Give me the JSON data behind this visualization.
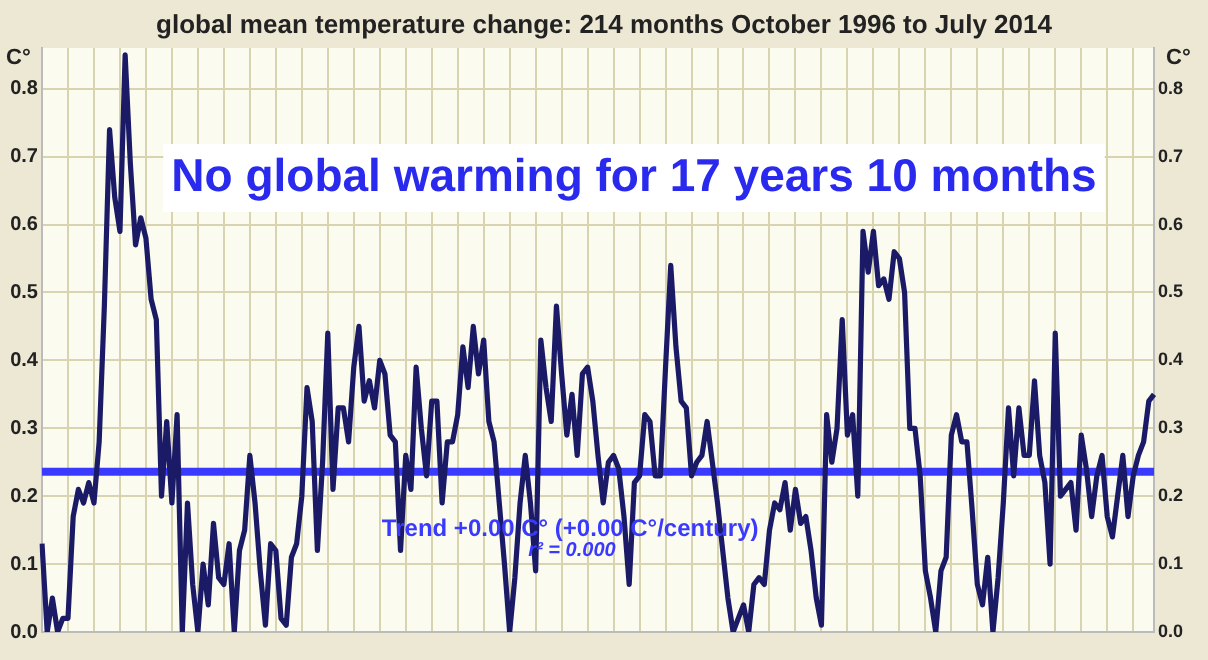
{
  "chart_data": {
    "type": "line",
    "title": "global mean temperature change: 214 months October 1996 to July 2014",
    "ylabel": "C°",
    "y2label": "C°",
    "annotations": [
      "No global warming for 17 years 10 months",
      "r² = 0.000"
    ],
    "categories": [
      null,
      null,
      null,
      null,
      null,
      null,
      null,
      null,
      null,
      null,
      null,
      null,
      null,
      null,
      null,
      null,
      null,
      null,
      null,
      null,
      null,
      null,
      null,
      null,
      null,
      null,
      null,
      null,
      null,
      null,
      null,
      null,
      null,
      null,
      null,
      null,
      null,
      null,
      null,
      null,
      null,
      null,
      null,
      null,
      null,
      null,
      null,
      null,
      null,
      null,
      null,
      null,
      null,
      null,
      null,
      null,
      null,
      null,
      null,
      null,
      null,
      null,
      null,
      null,
      null,
      null,
      null,
      null,
      null,
      null,
      null,
      null,
      null,
      null,
      null,
      null,
      null,
      null,
      null,
      null,
      null,
      null,
      null,
      null,
      null,
      null,
      null,
      null,
      null,
      null,
      null,
      null,
      null,
      null,
      null,
      null,
      null,
      null,
      null,
      null,
      null,
      null,
      null,
      null,
      null,
      null,
      null,
      null,
      null,
      null,
      null,
      null,
      null,
      null,
      null,
      null,
      null,
      null,
      null,
      null,
      null,
      null,
      null,
      null,
      null,
      null,
      null,
      null,
      null,
      null,
      null,
      null,
      null,
      null,
      null,
      null,
      null,
      null,
      null,
      null,
      null,
      null,
      null,
      null,
      null,
      null,
      null,
      null,
      null,
      null,
      null,
      null,
      null,
      null,
      null,
      null,
      null,
      null,
      null,
      null,
      null,
      null,
      null,
      null,
      null,
      null,
      null,
      null,
      null,
      null,
      null,
      null,
      null,
      null,
      null,
      null,
      null,
      null,
      null,
      null,
      null,
      null,
      null,
      null,
      null,
      null,
      null,
      null,
      null,
      null,
      null,
      null,
      null,
      null,
      null,
      null,
      null,
      null,
      null,
      null,
      null,
      null,
      null,
      null,
      null,
      null,
      null,
      null,
      null,
      null,
      null,
      null,
      null,
      null,
      null
    ],
    "series": [
      {
        "color": "#1a1a66",
        "values": [
          0.13,
          0,
          0.05,
          0,
          0.02,
          0.02,
          0.17,
          0.21,
          0.19,
          0.22,
          0.19,
          0.28,
          0.48,
          0.74,
          0.64,
          0.59,
          0.85,
          0.69,
          0.57,
          0.61,
          0.58,
          0.49,
          0.46,
          0.2,
          0.31,
          0.19,
          0.32,
          0,
          0.19,
          0.07,
          0,
          0.1,
          0.04,
          0.16,
          0.08,
          0.07,
          0.13,
          0,
          0.12,
          0.15,
          0.26,
          0.19,
          0.09,
          0.01,
          0.13,
          0.12,
          0.02,
          0.01,
          0.11,
          0.13,
          0.2,
          0.36,
          0.31,
          0.12,
          0.25,
          0.44,
          0.21,
          0.33,
          0.33,
          0.28,
          0.39,
          0.45,
          0.34,
          0.37,
          0.33,
          0.4,
          0.38,
          0.29,
          0.28,
          0.12,
          0.26,
          0.21,
          0.39,
          0.3,
          0.23,
          0.34,
          0.34,
          0.19,
          0.28,
          0.28,
          0.32,
          0.42,
          0.36,
          0.45,
          0.38,
          0.43,
          0.31,
          0.28,
          0.19,
          0.1,
          0,
          0.08,
          0.19,
          0.26,
          0.19,
          0.09,
          0.43,
          0.36,
          0.31,
          0.48,
          0.38,
          0.29,
          0.35,
          0.26,
          0.38,
          0.39,
          0.34,
          0.26,
          0.19,
          0.25,
          0.26,
          0.24,
          0.17,
          0.07,
          0.22,
          0.23,
          0.32,
          0.31,
          0.23,
          0.23,
          0.39,
          0.54,
          0.42,
          0.34,
          0.33,
          0.23,
          0.25,
          0.26,
          0.31,
          0.25,
          0.19,
          0.12,
          0.05,
          0,
          0.02,
          0.04,
          0,
          0.07,
          0.08,
          0.07,
          0.15,
          0.19,
          0.18,
          0.22,
          0.15,
          0.21,
          0.16,
          0.17,
          0.12,
          0.05,
          0.01,
          0.32,
          0.25,
          0.3,
          0.46,
          0.29,
          0.32,
          0.2,
          0.59,
          0.53,
          0.59,
          0.51,
          0.52,
          0.49,
          0.56,
          0.55,
          0.5,
          0.3,
          0.3,
          0.23,
          0.09,
          0.05,
          0,
          0.09,
          0.11,
          0.29,
          0.32,
          0.28,
          0.28,
          0.18,
          0.07,
          0.04,
          0.11,
          0,
          0.08,
          0.19,
          0.33,
          0.23,
          0.33,
          0.26,
          0.26,
          0.37,
          0.26,
          0.22,
          0.1,
          0.44,
          0.2,
          0.21,
          0.22,
          0.15,
          0.29,
          0.24,
          0.17,
          0.23,
          0.26,
          0.17,
          0.14,
          0.2,
          0.26,
          0.17,
          0.23,
          0.26,
          0.28,
          0.34,
          0.35
        ]
      }
    ],
    "ref_lines": [
      {
        "axis": "y",
        "value": 0.236,
        "label": "Trend +0.00 C° (+0.00 C°/century)",
        "color": "#3a3aff"
      }
    ],
    "ylim": [
      0,
      0.86
    ],
    "yticks": [
      {
        "value": 0,
        "label": "0.0"
      },
      0.1,
      0.2,
      0.3,
      0.4,
      0.5,
      0.6,
      0.7,
      0.8
    ],
    "y2lim": [
      0,
      0.86
    ],
    "y2ticks": [
      {
        "value": 0,
        "label": "0.0"
      },
      0.1,
      0.2,
      0.3,
      0.4,
      0.5,
      0.6,
      0.7,
      0.8
    ],
    "grid": true,
    "legend": false,
    "marker": "none",
    "line_style": "solid"
  }
}
